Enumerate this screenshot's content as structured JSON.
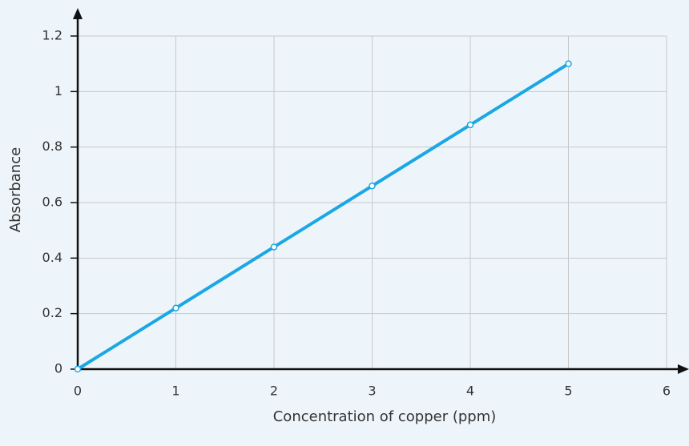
{
  "chart_data": {
    "type": "line",
    "x_label": "Concentration of copper (ppm)",
    "y_label": "Absorbance",
    "x": [
      0,
      1,
      2,
      3,
      4,
      5
    ],
    "values": [
      0,
      0.22,
      0.44,
      0.66,
      0.88,
      1.1
    ],
    "color": "#1aa7e4",
    "xlim": [
      0,
      6
    ],
    "xticks": [
      0,
      1,
      2,
      3,
      4,
      5,
      6
    ],
    "ylim": [
      0,
      1.2
    ],
    "yticks": [
      0,
      0.2,
      0.4,
      0.6,
      0.8,
      1,
      1.2
    ],
    "grid": true,
    "markers": true
  }
}
